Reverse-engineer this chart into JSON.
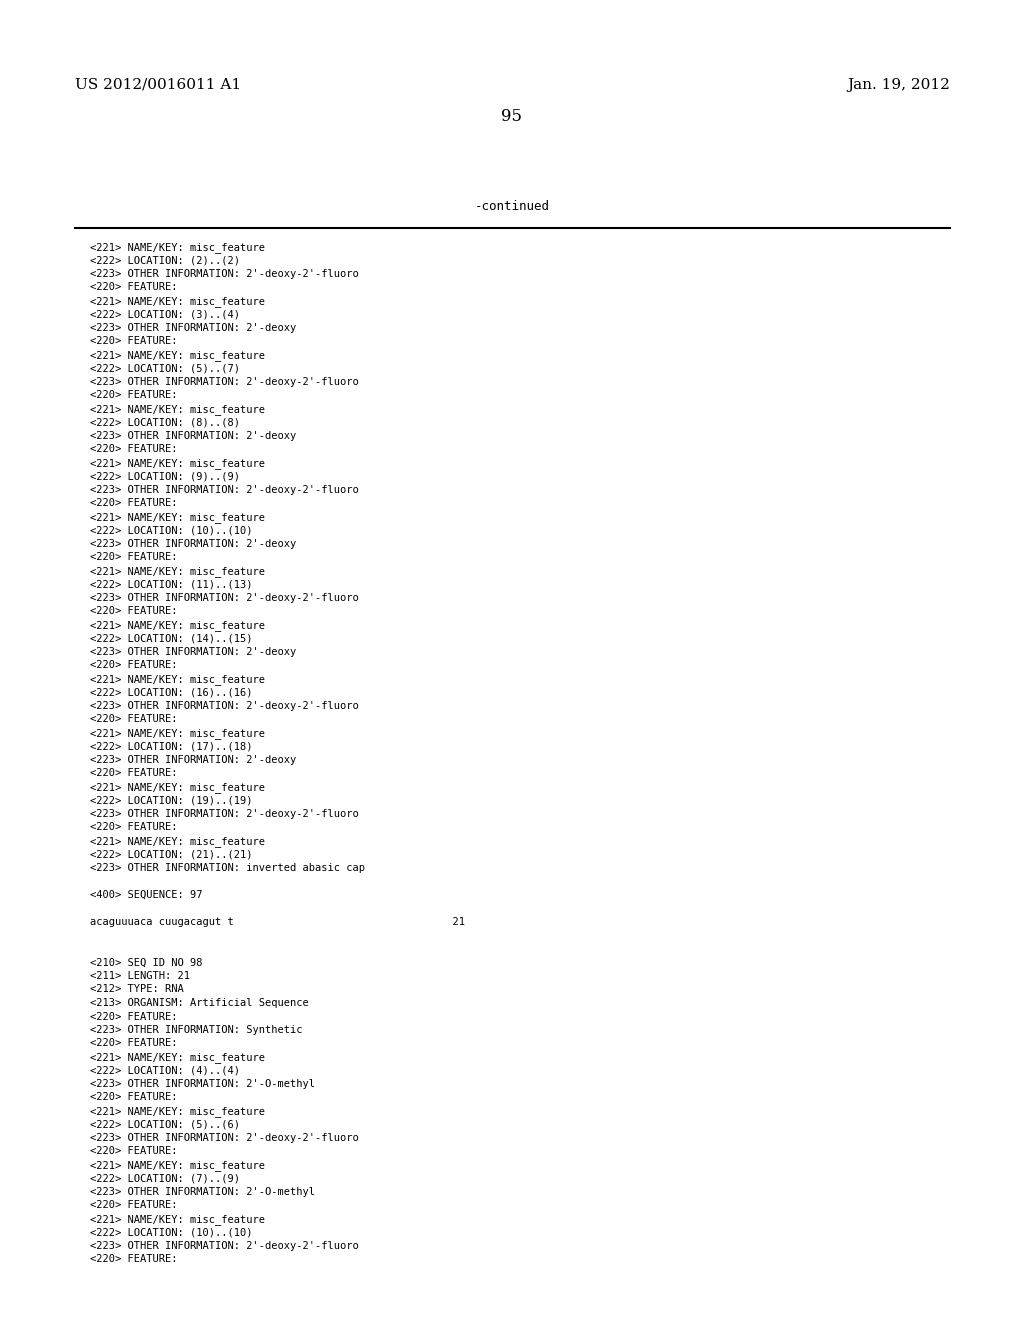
{
  "header_left": "US 2012/0016011 A1",
  "header_right": "Jan. 19, 2012",
  "page_number": "95",
  "continued_text": "-continued",
  "background_color": "#ffffff",
  "text_color": "#000000",
  "lines": [
    "<221> NAME/KEY: misc_feature",
    "<222> LOCATION: (2)..(2)",
    "<223> OTHER INFORMATION: 2'-deoxy-2'-fluoro",
    "<220> FEATURE:",
    "<221> NAME/KEY: misc_feature",
    "<222> LOCATION: (3)..(4)",
    "<223> OTHER INFORMATION: 2'-deoxy",
    "<220> FEATURE:",
    "<221> NAME/KEY: misc_feature",
    "<222> LOCATION: (5)..(7)",
    "<223> OTHER INFORMATION: 2'-deoxy-2'-fluoro",
    "<220> FEATURE:",
    "<221> NAME/KEY: misc_feature",
    "<222> LOCATION: (8)..(8)",
    "<223> OTHER INFORMATION: 2'-deoxy",
    "<220> FEATURE:",
    "<221> NAME/KEY: misc_feature",
    "<222> LOCATION: (9)..(9)",
    "<223> OTHER INFORMATION: 2'-deoxy-2'-fluoro",
    "<220> FEATURE:",
    "<221> NAME/KEY: misc_feature",
    "<222> LOCATION: (10)..(10)",
    "<223> OTHER INFORMATION: 2'-deoxy",
    "<220> FEATURE:",
    "<221> NAME/KEY: misc_feature",
    "<222> LOCATION: (11)..(13)",
    "<223> OTHER INFORMATION: 2'-deoxy-2'-fluoro",
    "<220> FEATURE:",
    "<221> NAME/KEY: misc_feature",
    "<222> LOCATION: (14)..(15)",
    "<223> OTHER INFORMATION: 2'-deoxy",
    "<220> FEATURE:",
    "<221> NAME/KEY: misc_feature",
    "<222> LOCATION: (16)..(16)",
    "<223> OTHER INFORMATION: 2'-deoxy-2'-fluoro",
    "<220> FEATURE:",
    "<221> NAME/KEY: misc_feature",
    "<222> LOCATION: (17)..(18)",
    "<223> OTHER INFORMATION: 2'-deoxy",
    "<220> FEATURE:",
    "<221> NAME/KEY: misc_feature",
    "<222> LOCATION: (19)..(19)",
    "<223> OTHER INFORMATION: 2'-deoxy-2'-fluoro",
    "<220> FEATURE:",
    "<221> NAME/KEY: misc_feature",
    "<222> LOCATION: (21)..(21)",
    "<223> OTHER INFORMATION: inverted abasic cap",
    "",
    "<400> SEQUENCE: 97",
    "",
    "acaguuuaca cuugacagut t                                   21",
    "",
    "",
    "<210> SEQ ID NO 98",
    "<211> LENGTH: 21",
    "<212> TYPE: RNA",
    "<213> ORGANISM: Artificial Sequence",
    "<220> FEATURE:",
    "<223> OTHER INFORMATION: Synthetic",
    "<220> FEATURE:",
    "<221> NAME/KEY: misc_feature",
    "<222> LOCATION: (4)..(4)",
    "<223> OTHER INFORMATION: 2'-O-methyl",
    "<220> FEATURE:",
    "<221> NAME/KEY: misc_feature",
    "<222> LOCATION: (5)..(6)",
    "<223> OTHER INFORMATION: 2'-deoxy-2'-fluoro",
    "<220> FEATURE:",
    "<221> NAME/KEY: misc_feature",
    "<222> LOCATION: (7)..(9)",
    "<223> OTHER INFORMATION: 2'-O-methyl",
    "<220> FEATURE:",
    "<221> NAME/KEY: misc_feature",
    "<222> LOCATION: (10)..(10)",
    "<223> OTHER INFORMATION: 2'-deoxy-2'-fluoro",
    "<220> FEATURE:"
  ]
}
